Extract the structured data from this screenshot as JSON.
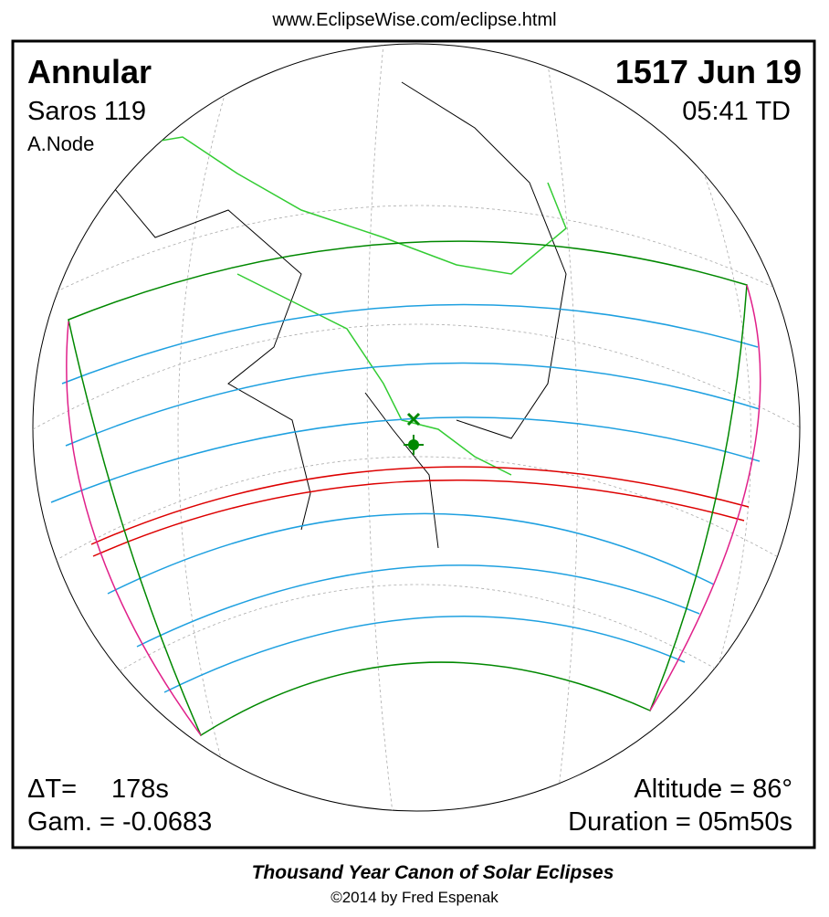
{
  "header": {
    "url": "www.EclipseWise.com/eclipse.html"
  },
  "eclipse": {
    "type": "Annular",
    "saros": "Saros 119",
    "node": "A.Node",
    "date": "1517 Jun 19",
    "time": "05:41 TD"
  },
  "parameters": {
    "delta_t_label": "ΔT=",
    "delta_t_value": "178s",
    "gamma": "Gam. = -0.0683",
    "altitude": "Altitude = 86°",
    "duration": "Duration = 05m50s"
  },
  "footer": {
    "title": "Thousand Year Canon of Solar Eclipses",
    "copyright": "©2014 by Fred Espenak"
  }
}
